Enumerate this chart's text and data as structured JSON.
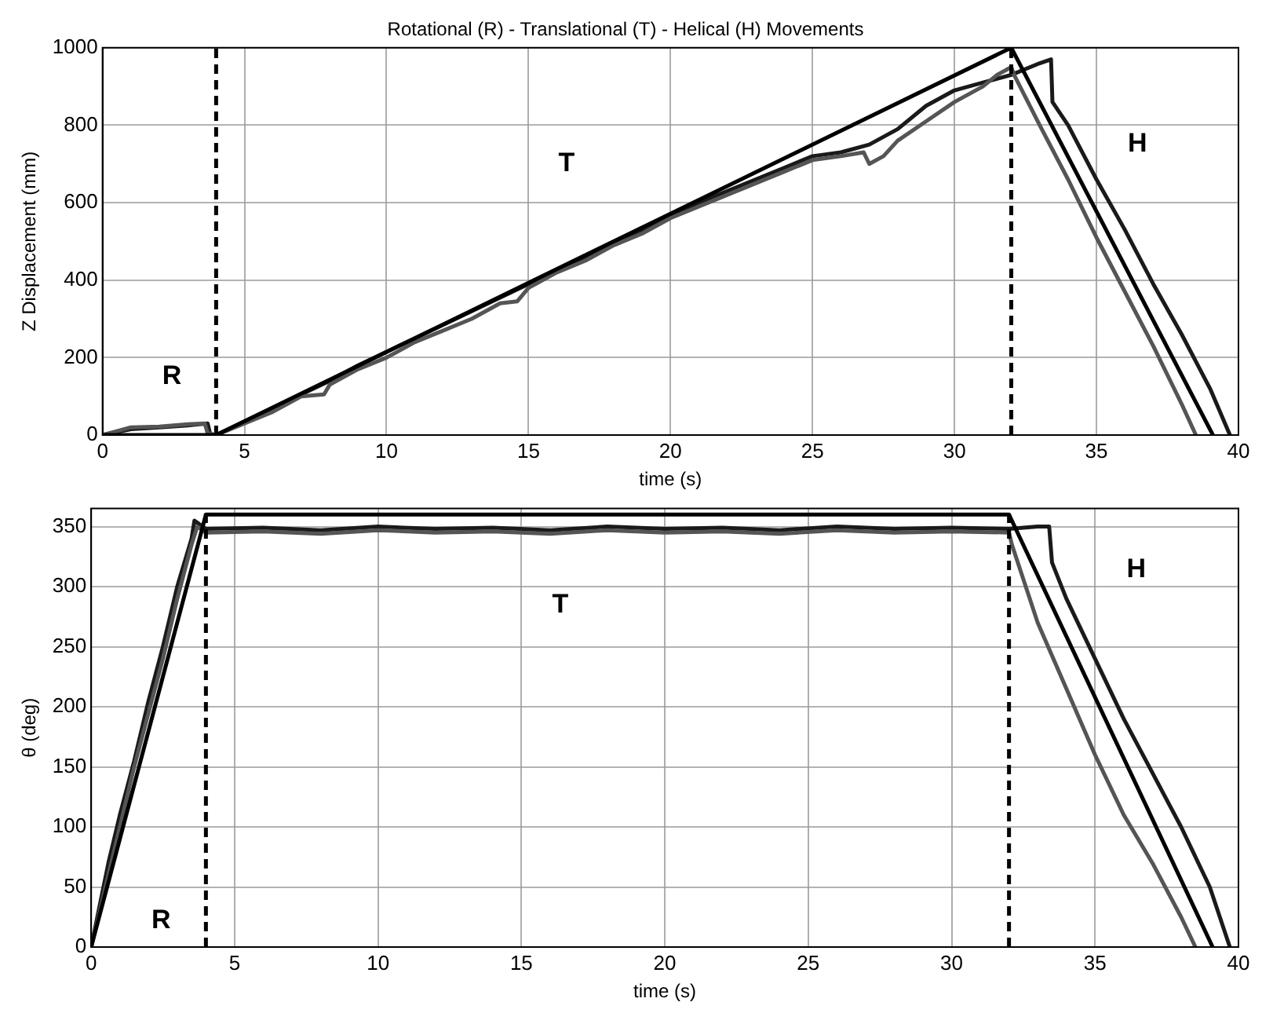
{
  "chart_data": [
    {
      "type": "line",
      "title": "Rotational (R) - Translational (T) - Helical (H) Movements",
      "xlabel": "time (s)",
      "ylabel": "Z Displacement (mm)",
      "xlim": [
        0,
        40
      ],
      "xticks": [
        0,
        5,
        10,
        15,
        20,
        25,
        30,
        35,
        40
      ],
      "ylim": [
        0,
        1000
      ],
      "yticks": [
        0,
        200,
        400,
        600,
        800,
        1000
      ],
      "grid": true,
      "marker": "none",
      "line_style": "solid",
      "legend": false,
      "series": [
        {
          "color": "#000000",
          "x": [
            0,
            4,
            32,
            39.1
          ],
          "values": [
            0,
            0,
            1000,
            0
          ]
        },
        {
          "color": "#555555",
          "x": [
            0,
            0.5,
            1,
            2,
            3,
            3.6,
            3.7,
            4,
            5,
            6,
            7,
            7.8,
            8,
            9,
            10,
            11,
            12,
            13,
            14,
            14.6,
            15,
            16,
            17,
            18,
            19,
            20,
            21,
            22,
            23,
            24,
            25,
            26,
            26.8,
            27,
            27.5,
            28,
            29,
            30,
            31,
            31.5,
            32,
            32.1,
            33,
            34,
            35,
            36,
            37,
            38,
            38.5
          ],
          "values": [
            0,
            10,
            20,
            22,
            28,
            30,
            5,
            0,
            30,
            60,
            100,
            105,
            130,
            170,
            200,
            240,
            270,
            300,
            340,
            345,
            380,
            420,
            450,
            490,
            520,
            560,
            590,
            620,
            650,
            680,
            710,
            720,
            730,
            700,
            720,
            760,
            810,
            860,
            900,
            930,
            950,
            930,
            800,
            660,
            510,
            370,
            230,
            80,
            0
          ]
        },
        {
          "color": "#1a1a1a",
          "x": [
            0,
            1,
            2,
            3,
            3.7,
            3.8,
            4,
            5,
            6,
            7,
            8,
            9,
            10,
            11,
            12,
            13,
            14,
            15,
            16,
            17,
            18,
            19,
            20,
            21,
            22,
            23,
            24,
            25,
            26,
            27,
            28,
            29,
            30,
            31,
            32,
            33,
            33.4,
            33.45,
            34,
            35,
            36,
            37,
            38,
            39,
            39.7
          ],
          "values": [
            0,
            15,
            20,
            25,
            30,
            0,
            0,
            35,
            70,
            105,
            140,
            180,
            215,
            250,
            285,
            320,
            355,
            390,
            425,
            460,
            495,
            530,
            565,
            600,
            630,
            660,
            690,
            720,
            730,
            750,
            790,
            850,
            890,
            910,
            930,
            960,
            970,
            860,
            800,
            660,
            530,
            390,
            260,
            120,
            0
          ]
        }
      ],
      "ref_lines": [
        {
          "axis": "x",
          "value": 4,
          "line_style": "dashed",
          "color": "#000000"
        },
        {
          "axis": "x",
          "value": 32,
          "line_style": "dashed",
          "color": "#000000"
        }
      ],
      "annotations": [
        "R",
        "T",
        "H"
      ]
    },
    {
      "type": "line",
      "xlabel": "time (s)",
      "ylabel": "θ (deg)",
      "xlim": [
        0,
        40
      ],
      "xticks": [
        0,
        5,
        10,
        15,
        20,
        25,
        30,
        35,
        40
      ],
      "ylim": [
        0,
        365
      ],
      "yticks": [
        0,
        50,
        100,
        150,
        200,
        250,
        300,
        350
      ],
      "grid": true,
      "marker": "none",
      "line_style": "solid",
      "legend": false,
      "series": [
        {
          "color": "#000000",
          "x": [
            0,
            4,
            32,
            39.1
          ],
          "values": [
            0,
            360,
            360,
            0
          ]
        },
        {
          "color": "#555555",
          "x": [
            0,
            0.3,
            0.6,
            1,
            1.5,
            2,
            2.5,
            3,
            3.5,
            3.7,
            4,
            6,
            8,
            10,
            12,
            14,
            16,
            18,
            20,
            22,
            24,
            26,
            28,
            30,
            32,
            32.1,
            33,
            34,
            35,
            36,
            37,
            38,
            38.5
          ],
          "values": [
            0,
            30,
            60,
            100,
            150,
            195,
            240,
            290,
            335,
            350,
            345,
            346,
            344,
            347,
            345,
            346,
            344,
            347,
            345,
            346,
            344,
            347,
            345,
            346,
            345,
            335,
            270,
            215,
            160,
            110,
            70,
            25,
            0
          ]
        },
        {
          "color": "#1a1a1a",
          "x": [
            0,
            0.3,
            0.6,
            1,
            1.5,
            2,
            2.5,
            3,
            3.5,
            3.6,
            4,
            6,
            8,
            10,
            12,
            14,
            16,
            18,
            20,
            22,
            24,
            26,
            28,
            30,
            32,
            33,
            33.4,
            33.5,
            34,
            35,
            36,
            37,
            38,
            39,
            39.7
          ],
          "values": [
            0,
            35,
            70,
            110,
            155,
            205,
            250,
            300,
            340,
            355,
            348,
            349,
            347,
            350,
            348,
            349,
            347,
            350,
            348,
            349,
            347,
            350,
            348,
            349,
            348,
            350,
            350,
            320,
            290,
            240,
            190,
            145,
            100,
            50,
            0
          ]
        }
      ],
      "ref_lines": [
        {
          "axis": "x",
          "value": 4,
          "line_style": "dashed",
          "color": "#000000"
        },
        {
          "axis": "x",
          "value": 32,
          "line_style": "dashed",
          "color": "#000000"
        }
      ],
      "annotations": [
        "R",
        "T",
        "H"
      ]
    }
  ]
}
